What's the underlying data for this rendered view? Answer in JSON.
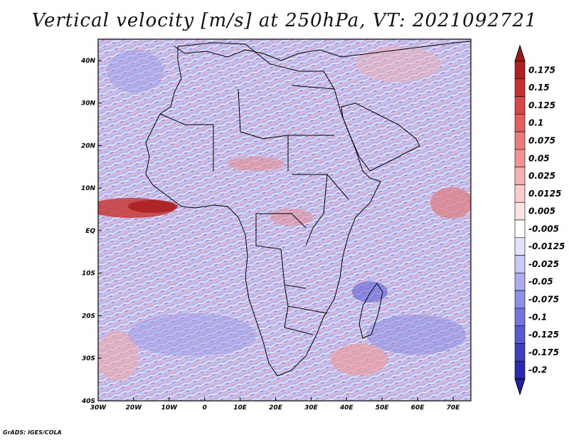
{
  "title": "Vertical velocity [m/s] at 250hPa, VT: 2021092721",
  "credit": "GrADS: IGES/COLA",
  "map": {
    "variable": "Vertical velocity",
    "units": "m/s",
    "level": "250hPa",
    "valid_time": "2021092721",
    "lon_range": [
      -30,
      75
    ],
    "lat_range": [
      -40,
      45
    ],
    "lat_ticks": [
      {
        "value": 40,
        "label": "40N"
      },
      {
        "value": 30,
        "label": "30N"
      },
      {
        "value": 20,
        "label": "20N"
      },
      {
        "value": 10,
        "label": "10N"
      },
      {
        "value": 0,
        "label": "EQ"
      },
      {
        "value": -10,
        "label": "10S"
      },
      {
        "value": -20,
        "label": "20S"
      },
      {
        "value": -30,
        "label": "30S"
      },
      {
        "value": -40,
        "label": "40S"
      }
    ],
    "lon_ticks": [
      {
        "value": -30,
        "label": "30W"
      },
      {
        "value": -20,
        "label": "20W"
      },
      {
        "value": -10,
        "label": "10W"
      },
      {
        "value": 0,
        "label": "0"
      },
      {
        "value": 10,
        "label": "10E"
      },
      {
        "value": 20,
        "label": "20E"
      },
      {
        "value": 30,
        "label": "30E"
      },
      {
        "value": 40,
        "label": "40E"
      },
      {
        "value": 50,
        "label": "50E"
      },
      {
        "value": 60,
        "label": "60E"
      },
      {
        "value": 70,
        "label": "70E"
      }
    ]
  },
  "colorbar": {
    "levels": [
      {
        "label": "0.175",
        "color": "#b02020"
      },
      {
        "label": "0.15",
        "color": "#c53030"
      },
      {
        "label": "0.125",
        "color": "#d84848"
      },
      {
        "label": "0.1",
        "color": "#e46060"
      },
      {
        "label": "0.075",
        "color": "#ec7a7a"
      },
      {
        "label": "0.05",
        "color": "#f29494"
      },
      {
        "label": "0.025",
        "color": "#f7b0b0"
      },
      {
        "label": "0.0125",
        "color": "#fbcaca"
      },
      {
        "label": "0.005",
        "color": "#fde4e4"
      },
      {
        "label": "-0.005",
        "color": "#ffffff"
      },
      {
        "label": "-0.0125",
        "color": "#e2e2fa"
      },
      {
        "label": "-0.025",
        "color": "#c8c8f4"
      },
      {
        "label": "-0.05",
        "color": "#acacee"
      },
      {
        "label": "-0.075",
        "color": "#9090e6"
      },
      {
        "label": "-0.1",
        "color": "#7474dc"
      },
      {
        "label": "-0.125",
        "color": "#5a5ad0"
      },
      {
        "label": "-0.175",
        "color": "#4040c0"
      },
      {
        "label": "-0.2",
        "color": "#2a2aae"
      }
    ],
    "top_arrow_color": "#a01818",
    "bottom_arrow_color": "#2020a0"
  }
}
